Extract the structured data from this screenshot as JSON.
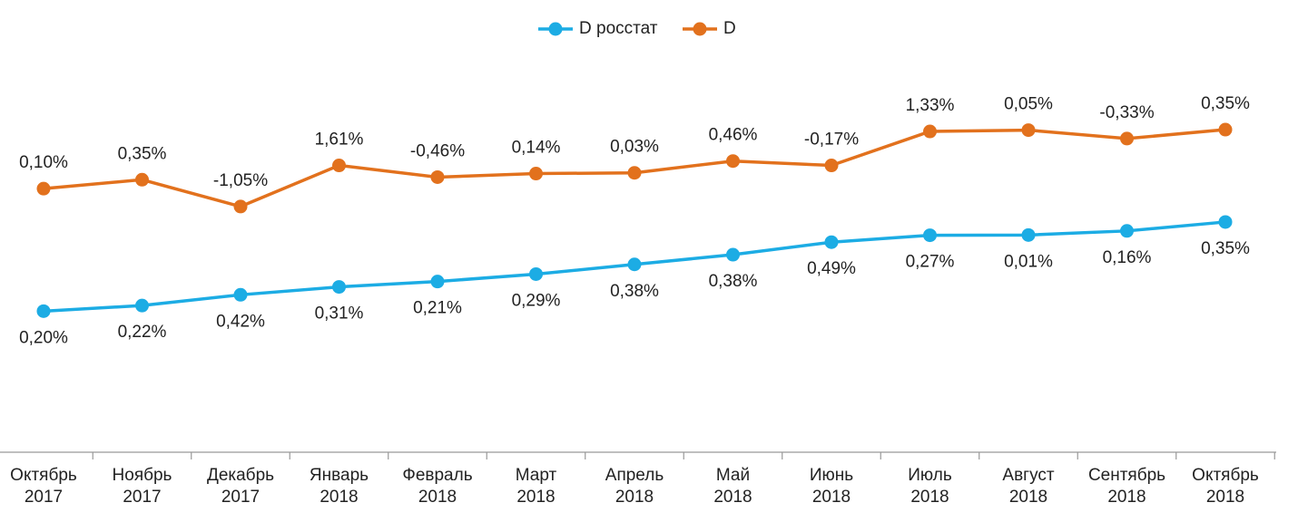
{
  "chart_data": {
    "type": "line",
    "categories": [
      [
        "Октябрь",
        "2017"
      ],
      [
        "Ноябрь",
        "2017"
      ],
      [
        "Декабрь",
        "2017"
      ],
      [
        "Январь",
        "2018"
      ],
      [
        "Февраль",
        "2018"
      ],
      [
        "Март",
        "2018"
      ],
      [
        "Апрель",
        "2018"
      ],
      [
        "Май",
        "2018"
      ],
      [
        "Июнь",
        "2018"
      ],
      [
        "Июль",
        "2018"
      ],
      [
        "Август",
        "2018"
      ],
      [
        "Сентябрь",
        "2018"
      ],
      [
        "Октябрь",
        "2018"
      ]
    ],
    "series": [
      {
        "name": "D росстат",
        "color": "#1cace4",
        "values": [
          0.2,
          0.22,
          0.42,
          0.31,
          0.21,
          0.29,
          0.38,
          0.38,
          0.49,
          0.27,
          0.01,
          0.16,
          0.35
        ],
        "value_labels": [
          "0,20%",
          "0,22%",
          "0,42%",
          "0,31%",
          "0,21%",
          "0,29%",
          "0,38%",
          "0,38%",
          "0,49%",
          "0,27%",
          "0,01%",
          "0,16%",
          "0,35%"
        ]
      },
      {
        "name": "D",
        "color": "#e2711d",
        "values": [
          0.1,
          0.35,
          -1.05,
          1.61,
          -0.46,
          0.14,
          0.03,
          0.46,
          -0.17,
          1.33,
          0.05,
          -0.33,
          0.35
        ],
        "value_labels": [
          "0,10%",
          "0,35%",
          "-1,05%",
          "1,61%",
          "-0,46%",
          "0,14%",
          "0,03%",
          "0,46%",
          "-0,17%",
          "1,33%",
          "0,05%",
          "-0,33%",
          "0,35%"
        ]
      }
    ]
  }
}
